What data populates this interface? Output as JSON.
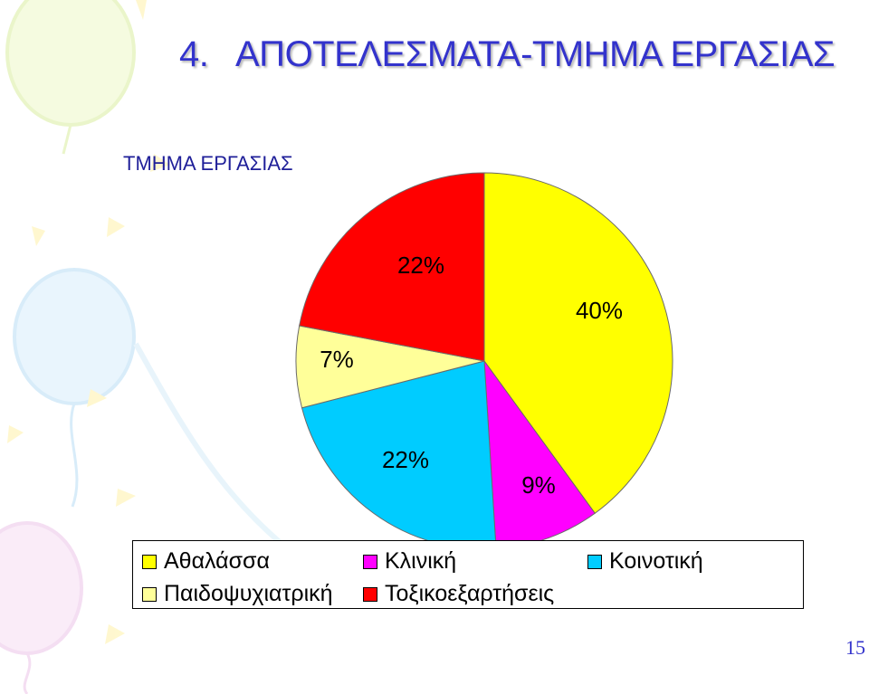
{
  "slide": {
    "number_label": "4.",
    "title": "ΑΠΟΤΕΛΕΣΜΑΤΑ-ΤΜΗΜΑ ΕΡΓΑΣΙΑΣ",
    "page_number": "15"
  },
  "colors": {
    "title": "#3333cc",
    "Αθαλάσσα": "#ffff00",
    "Κλινική": "#ff00ff",
    "Κοινοτική": "#00ccff",
    "Παιδοψυχιατρική": "#ffff99",
    "Τοξικοεξαρτήσεις": "#ff0000"
  },
  "chart_data": {
    "type": "pie",
    "title": "ΤΜΗΜΑ ΕΡΓΑΣΙΑΣ",
    "slices": [
      {
        "name": "Αθαλάσσα",
        "value": 40,
        "label": "40%"
      },
      {
        "name": "Κλινική",
        "value": 9,
        "label": "9%"
      },
      {
        "name": "Κοινοτική",
        "value": 22,
        "label": "22%"
      },
      {
        "name": "Παιδοψυχιατρική",
        "value": 7,
        "label": "7%"
      },
      {
        "name": "Τοξικοεξαρτήσεις",
        "value": 22,
        "label": "22%"
      }
    ],
    "legend": {
      "placement": "bottom",
      "entries": [
        "Αθαλάσσα",
        "Κλινική",
        "Κοινοτική",
        "Παιδοψυχιατρική",
        "Τοξικοεξαρτήσεις"
      ]
    }
  }
}
